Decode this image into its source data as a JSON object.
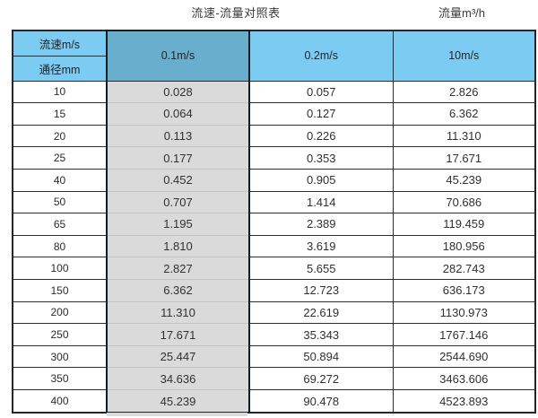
{
  "page": {
    "title": "流速-流量对照表",
    "unit_label": "流量m³/h"
  },
  "colors": {
    "header_blue": "#7CCBF2",
    "selected_header_blue": "#69AECD",
    "selected_column_gray": "#DADADA",
    "grid_border_dark": "#2E2E2E",
    "text_dark": "#303030"
  },
  "chart_data": {
    "type": "table",
    "title": "流速-流量对照表",
    "unit_label": "流量m³/h",
    "corner": {
      "top": "流速m/s",
      "bottom": "通径mm"
    },
    "columns": [
      "0.1m/s",
      "0.2m/s",
      "10m/s"
    ],
    "selected_column": "0.1m/s",
    "rows": [
      {
        "dn": "10",
        "values": [
          "0.028",
          "0.057",
          "2.826"
        ]
      },
      {
        "dn": "15",
        "values": [
          "0.064",
          "0.127",
          "6.362"
        ]
      },
      {
        "dn": "20",
        "values": [
          "0.113",
          "0.226",
          "11.310"
        ]
      },
      {
        "dn": "25",
        "values": [
          "0.177",
          "0.353",
          "17.671"
        ]
      },
      {
        "dn": "40",
        "values": [
          "0.452",
          "0.905",
          "45.239"
        ]
      },
      {
        "dn": "50",
        "values": [
          "0.707",
          "1.414",
          "70.686"
        ]
      },
      {
        "dn": "65",
        "values": [
          "1.195",
          "2.389",
          "119.459"
        ]
      },
      {
        "dn": "80",
        "values": [
          "1.810",
          "3.619",
          "180.956"
        ]
      },
      {
        "dn": "100",
        "values": [
          "2.827",
          "5.655",
          "282.743"
        ]
      },
      {
        "dn": "150",
        "values": [
          "6.362",
          "12.723",
          "636.173"
        ]
      },
      {
        "dn": "200",
        "values": [
          "11.310",
          "22.619",
          "1130.973"
        ]
      },
      {
        "dn": "250",
        "values": [
          "17.671",
          "35.343",
          "1767.146"
        ]
      },
      {
        "dn": "300",
        "values": [
          "25.447",
          "50.894",
          "2544.690"
        ]
      },
      {
        "dn": "350",
        "values": [
          "34.636",
          "69.272",
          "3463.606"
        ]
      },
      {
        "dn": "400",
        "values": [
          "45.239",
          "90.478",
          "4523.893"
        ]
      }
    ]
  }
}
